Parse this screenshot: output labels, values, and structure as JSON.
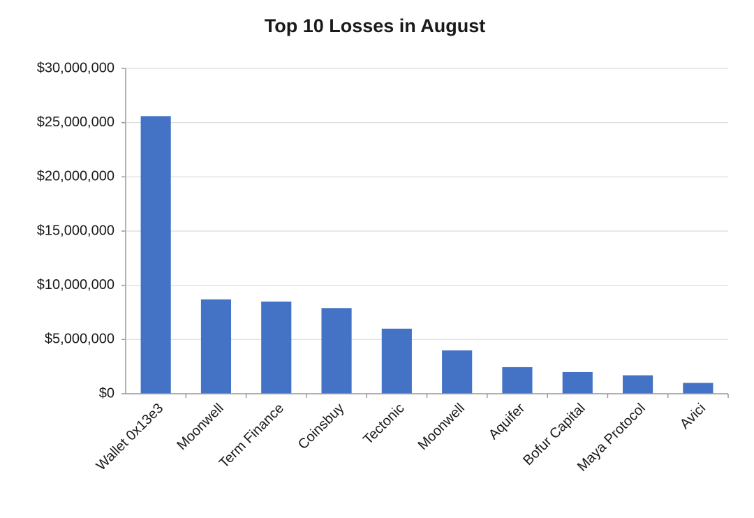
{
  "chart_data": {
    "type": "bar",
    "title": "Top 10 Losses in August",
    "categories": [
      "Wallet 0x13e3",
      "Moonwell",
      "Term Finance",
      "Coinsbuy",
      "Tectonic",
      "Moonwell",
      "Aquifer",
      "Bofur Capital",
      "Maya Protocol",
      "Avici"
    ],
    "values": [
      25600000,
      8700000,
      8500000,
      7900000,
      6000000,
      4000000,
      2450000,
      2000000,
      1700000,
      1000000
    ],
    "color": "#4472c4",
    "ylim": [
      0,
      30000000
    ],
    "yticks": [
      {
        "value": 0,
        "label": "$0"
      },
      {
        "value": 5000000,
        "label": "$5,000,000"
      },
      {
        "value": 10000000,
        "label": "$10,000,000"
      },
      {
        "value": 15000000,
        "label": "$15,000,000"
      },
      {
        "value": 20000000,
        "label": "$20,000,000"
      },
      {
        "value": 25000000,
        "label": "$25,000,000"
      },
      {
        "value": 30000000,
        "label": "$30,000,000"
      }
    ],
    "grid": true
  }
}
